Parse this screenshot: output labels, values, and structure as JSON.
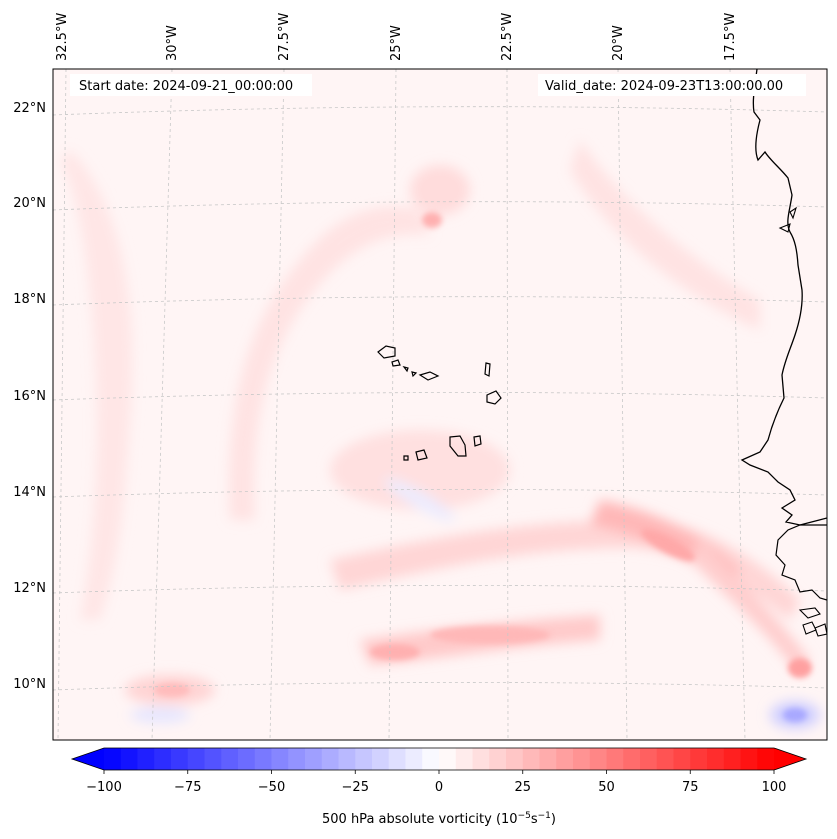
{
  "map": {
    "start_date": "Start date: 2024-09-21_00:00:00",
    "valid_date": "Valid_date: 2024-09-23T13:00:00.00",
    "longitude_labels": [
      "32.5°W",
      "30°W",
      "27.5°W",
      "25°W",
      "22.5°W",
      "20°W",
      "17.5°W"
    ],
    "latitude_labels": [
      "22°N",
      "20°N",
      "18°N",
      "16°N",
      "14°N",
      "12°N",
      "10°N"
    ],
    "field": "500 hPa absolute vorticity"
  },
  "colorbar": {
    "label_text": "500 hPa absolute vorticity (10",
    "label_exp1": "−5",
    "label_mid": "s",
    "label_exp2": "−1",
    "label_close": ")",
    "ticks": [
      "−100",
      "−75",
      "−50",
      "−25",
      "0",
      "25",
      "50",
      "75",
      "100"
    ],
    "min": -100,
    "max": 100,
    "levels": 40,
    "colors": {
      "negative": "#0000ff",
      "zero": "#ffffff",
      "positive": "#ff0000"
    }
  }
}
